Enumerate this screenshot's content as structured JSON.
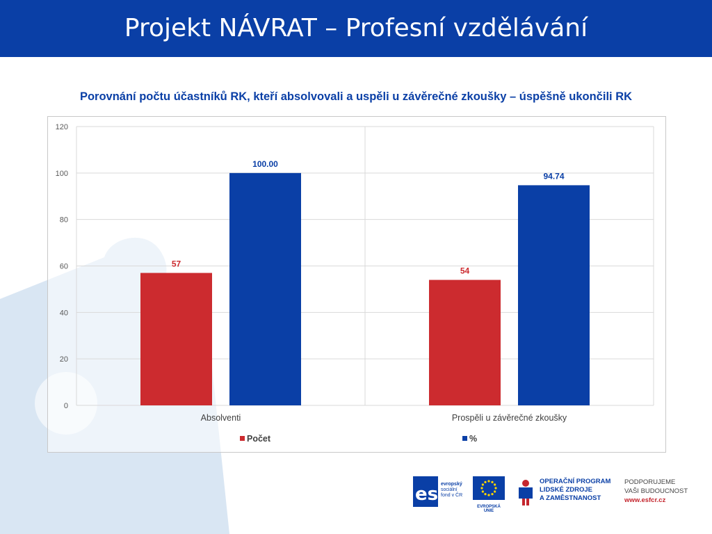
{
  "header": {
    "title": "Projekt NÁVRAT – Profesní vzdělávání"
  },
  "chart_data": {
    "type": "bar",
    "title": "Porovnání počtu účastníků RK, kteří absolvovali a uspěli u závěrečné zkoušky – úspěšně ukončili RK",
    "categories": [
      "Absolventi",
      "Prospěli u závěrečné zkoušky"
    ],
    "series": [
      {
        "name": "Počet",
        "values": [
          57,
          54
        ],
        "labels": [
          "57",
          "54"
        ],
        "color": "#cc2b2f"
      },
      {
        "name": "%",
        "values": [
          100.0,
          94.74
        ],
        "labels": [
          "100.00",
          "94.74"
        ],
        "color": "#0a3fa6"
      }
    ],
    "ylim": [
      0,
      120
    ],
    "yticks": [
      "0",
      "20",
      "40",
      "60",
      "80",
      "100",
      "120"
    ],
    "grid": true,
    "legend": "bottom"
  },
  "footer": {
    "esf_text": [
      "evropský",
      "sociální",
      "fond v ČR"
    ],
    "eu_text": "EVROPSKÁ UNIE",
    "op_text": [
      "OPERAČNÍ PROGRAM",
      "LIDSKÉ ZDROJE",
      "A ZAMĚSTNANOST"
    ],
    "support": [
      "PODPORUJEME",
      "VAŠI BUDOUCNOST"
    ],
    "web": "www.esfcr.cz"
  }
}
